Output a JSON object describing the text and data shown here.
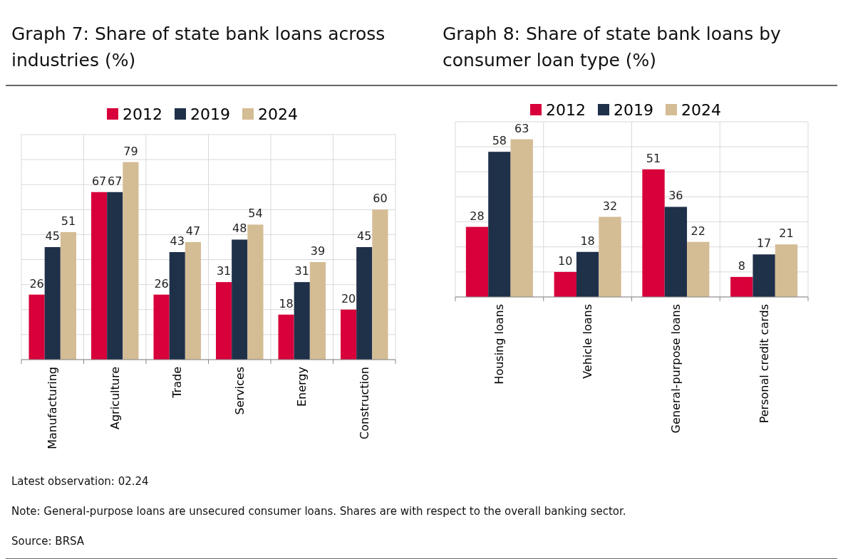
{
  "chart_data": [
    {
      "type": "bar",
      "title": "Graph 7: Share of state bank loans across industries (%)",
      "categories": [
        "Manufacturing",
        "Agriculture",
        "Trade",
        "Services",
        "Energy",
        "Construction"
      ],
      "series": [
        {
          "name": "2012",
          "color": "#d7003a",
          "values": [
            26,
            67,
            26,
            31,
            18,
            20
          ]
        },
        {
          "name": "2019",
          "color": "#1f3049",
          "values": [
            45,
            67,
            43,
            48,
            31,
            45
          ]
        },
        {
          "name": "2024",
          "color": "#d4bc94",
          "values": [
            51,
            79,
            47,
            54,
            39,
            60
          ]
        }
      ],
      "ylim": [
        0,
        90
      ],
      "yticks": [
        {
          "value": 0,
          "label": null
        },
        {
          "value": 10,
          "label": null
        },
        {
          "value": 20,
          "label": null
        },
        {
          "value": 30,
          "label": null
        },
        {
          "value": 40,
          "label": null
        },
        {
          "value": 50,
          "label": null
        },
        {
          "value": 60,
          "label": null
        },
        {
          "value": 70,
          "label": null
        },
        {
          "value": 80,
          "label": null
        },
        {
          "value": 90,
          "label": null
        }
      ],
      "grid": true,
      "legend": "top",
      "data_labels": true,
      "tick_labels": "x"
    },
    {
      "type": "bar",
      "title": "Graph 8: Share of state bank loans by consumer loan type (%)",
      "categories": [
        "Housing loans",
        "Vehicle loans",
        "General-purpose loans",
        "Personal credit cards"
      ],
      "series": [
        {
          "name": "2012",
          "color": "#d7003a",
          "values": [
            28,
            10,
            51,
            8
          ]
        },
        {
          "name": "2019",
          "color": "#1f3049",
          "values": [
            58,
            18,
            36,
            17
          ]
        },
        {
          "name": "2024",
          "color": "#d4bc94",
          "values": [
            63,
            32,
            22,
            21
          ]
        }
      ],
      "ylim": [
        0,
        70
      ],
      "yticks": [
        {
          "value": 0,
          "label": null
        },
        {
          "value": 10,
          "label": null
        },
        {
          "value": 20,
          "label": null
        },
        {
          "value": 30,
          "label": null
        },
        {
          "value": 40,
          "label": null
        },
        {
          "value": 50,
          "label": null
        },
        {
          "value": 60,
          "label": null
        },
        {
          "value": 70,
          "label": null
        }
      ],
      "grid": true,
      "legend": "top",
      "data_labels": true,
      "tick_labels": "x",
      "annotations": [
        "Latest observation: 02.24",
        "Note: General-purpose loans are unsecured consumer loans. Shares are with respect to the overall banking sector.",
        "Source: BRSA"
      ]
    }
  ]
}
